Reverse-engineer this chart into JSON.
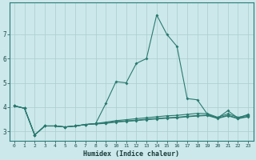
{
  "xlabel": "Humidex (Indice chaleur)",
  "background_color": "#cce8ea",
  "grid_color": "#aacccc",
  "line_color": "#2a7a70",
  "x": [
    0,
    1,
    2,
    3,
    4,
    5,
    6,
    7,
    8,
    9,
    10,
    11,
    12,
    13,
    14,
    15,
    16,
    17,
    18,
    19,
    20,
    21,
    22,
    23
  ],
  "series1": [
    4.05,
    3.95,
    2.85,
    3.22,
    3.22,
    3.18,
    3.22,
    3.28,
    3.32,
    4.15,
    5.05,
    5.0,
    5.8,
    6.0,
    7.8,
    7.0,
    6.5,
    4.35,
    4.3,
    3.7,
    3.55,
    3.85,
    3.55,
    3.7
  ],
  "series2": [
    4.05,
    3.95,
    2.85,
    3.22,
    3.22,
    3.18,
    3.22,
    3.28,
    3.32,
    3.38,
    3.44,
    3.48,
    3.52,
    3.56,
    3.6,
    3.64,
    3.66,
    3.7,
    3.74,
    3.73,
    3.58,
    3.72,
    3.58,
    3.66
  ],
  "series3": [
    4.05,
    3.95,
    2.85,
    3.22,
    3.22,
    3.18,
    3.22,
    3.28,
    3.32,
    3.35,
    3.4,
    3.43,
    3.46,
    3.5,
    3.53,
    3.56,
    3.58,
    3.62,
    3.65,
    3.67,
    3.55,
    3.66,
    3.54,
    3.62
  ],
  "series4": [
    4.05,
    3.95,
    2.85,
    3.22,
    3.22,
    3.18,
    3.22,
    3.28,
    3.3,
    3.33,
    3.38,
    3.41,
    3.44,
    3.48,
    3.51,
    3.54,
    3.56,
    3.6,
    3.63,
    3.65,
    3.53,
    3.64,
    3.52,
    3.6
  ],
  "ylim": [
    2.6,
    8.3
  ],
  "yticks": [
    3,
    4,
    5,
    6,
    7
  ],
  "xticks": [
    0,
    1,
    2,
    3,
    4,
    5,
    6,
    7,
    8,
    9,
    10,
    11,
    12,
    13,
    14,
    15,
    16,
    17,
    18,
    19,
    20,
    21,
    22,
    23
  ]
}
